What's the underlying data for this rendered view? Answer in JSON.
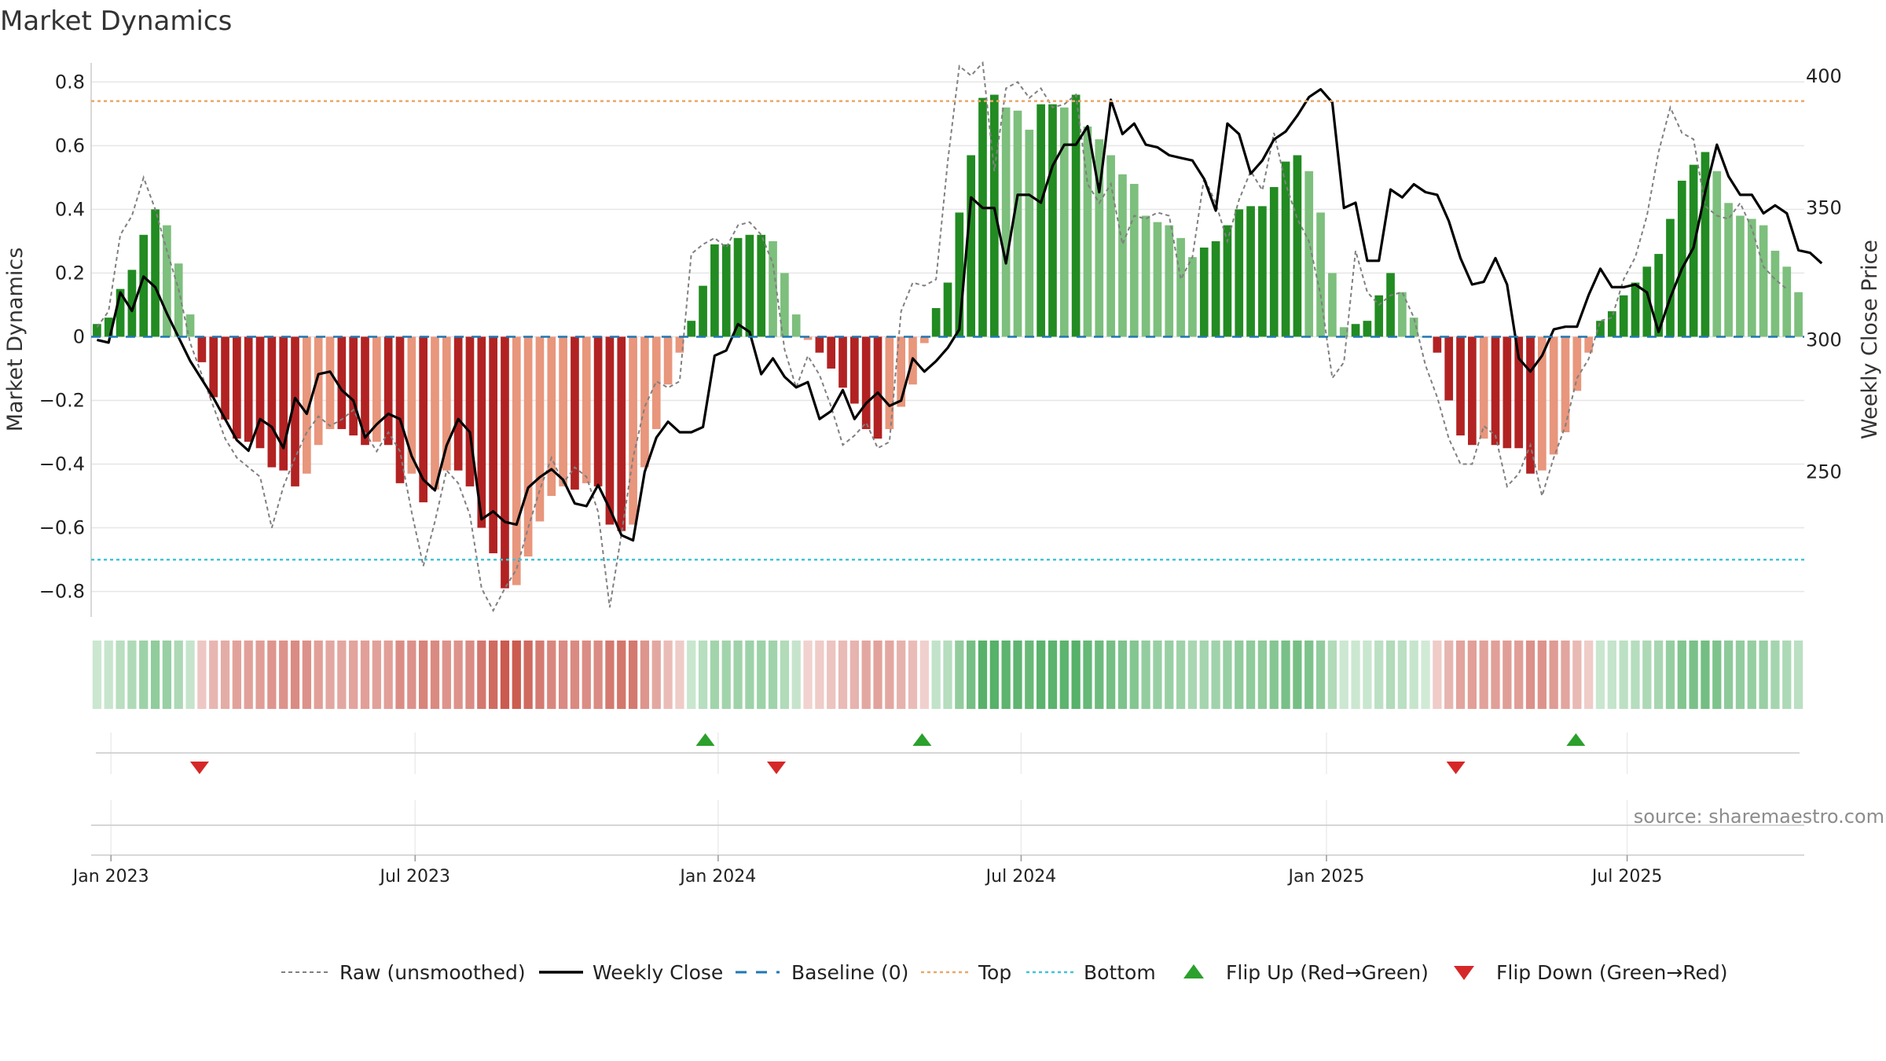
{
  "title": "Market Dynamics",
  "source": "source: sharemaestro.com",
  "chart_data": {
    "type": "bar",
    "title": "Market Dynamics",
    "ylabel_left": "Market Dynamics",
    "ylabel_right": "Weekly Close Price",
    "ylim_left": [
      -0.88,
      0.86
    ],
    "ylim_right": [
      195,
      405
    ],
    "yticks_left": [
      {
        "v": 0.8,
        "label": "0.8"
      },
      {
        "v": 0.6,
        "label": "0.6"
      },
      {
        "v": 0.4,
        "label": "0.4"
      },
      {
        "v": 0.2,
        "label": "0.2"
      },
      {
        "v": 0,
        "label": "0"
      },
      {
        "v": -0.2,
        "label": "−0.2"
      },
      {
        "v": -0.4,
        "label": "−0.4"
      },
      {
        "v": -0.6,
        "label": "−0.6"
      },
      {
        "v": -0.8,
        "label": "−0.8"
      }
    ],
    "yticks_right": [
      {
        "v": 400,
        "label": "400"
      },
      {
        "v": 350,
        "label": "350"
      },
      {
        "v": 300,
        "label": "300"
      },
      {
        "v": 250,
        "label": "250"
      }
    ],
    "xticks": [
      {
        "week": 1.7,
        "label": "Jan 2023"
      },
      {
        "week": 27.8,
        "label": "Jul 2023"
      },
      {
        "week": 53.8,
        "label": "Jan 2024"
      },
      {
        "week": 79.8,
        "label": "Jul 2024"
      },
      {
        "week": 106.0,
        "label": "Jan 2025"
      },
      {
        "week": 131.8,
        "label": "Jul 2025"
      }
    ],
    "top_line": 0.74,
    "bottom_line": -0.7,
    "baseline": 0,
    "start_date": "2022-12-26",
    "bar_values": [
      0.04,
      0.06,
      0.15,
      0.21,
      0.32,
      0.4,
      0.35,
      0.23,
      0.07,
      -0.08,
      -0.19,
      -0.26,
      -0.32,
      -0.33,
      -0.35,
      -0.41,
      -0.42,
      -0.47,
      -0.43,
      -0.34,
      -0.29,
      -0.29,
      -0.31,
      -0.34,
      -0.33,
      -0.34,
      -0.46,
      -0.43,
      -0.52,
      -0.48,
      -0.42,
      -0.42,
      -0.47,
      -0.6,
      -0.68,
      -0.79,
      -0.78,
      -0.69,
      -0.58,
      -0.5,
      -0.47,
      -0.48,
      -0.46,
      -0.47,
      -0.59,
      -0.61,
      -0.59,
      -0.41,
      -0.29,
      -0.15,
      -0.05,
      0.05,
      0.16,
      0.29,
      0.29,
      0.31,
      0.32,
      0.32,
      0.3,
      0.2,
      0.07,
      -0.01,
      -0.05,
      -0.1,
      -0.16,
      -0.21,
      -0.29,
      -0.32,
      -0.29,
      -0.22,
      -0.15,
      -0.02,
      0.09,
      0.17,
      0.39,
      0.57,
      0.75,
      0.76,
      0.72,
      0.71,
      0.65,
      0.73,
      0.73,
      0.72,
      0.76,
      0.66,
      0.62,
      0.57,
      0.51,
      0.48,
      0.38,
      0.36,
      0.35,
      0.31,
      0.25,
      0.28,
      0.3,
      0.35,
      0.4,
      0.41,
      0.41,
      0.47,
      0.55,
      0.57,
      0.52,
      0.39,
      0.2,
      0.03,
      0.04,
      0.05,
      0.13,
      0.2,
      0.14,
      0.06,
      0.0,
      -0.05,
      -0.2,
      -0.31,
      -0.34,
      -0.32,
      -0.34,
      -0.35,
      -0.35,
      -0.43,
      -0.42,
      -0.37,
      -0.3,
      -0.17,
      -0.05,
      0.05,
      0.08,
      0.13,
      0.17,
      0.22,
      0.26,
      0.37,
      0.49,
      0.54,
      0.58,
      0.52,
      0.42,
      0.38,
      0.37,
      0.35,
      0.27,
      0.22,
      0.14
    ],
    "raw_values": [
      0.03,
      0.08,
      0.32,
      0.38,
      0.5,
      0.4,
      0.27,
      0.15,
      -0.02,
      -0.12,
      -0.22,
      -0.32,
      -0.38,
      -0.41,
      -0.44,
      -0.6,
      -0.47,
      -0.38,
      -0.3,
      -0.25,
      -0.28,
      -0.26,
      -0.23,
      -0.3,
      -0.36,
      -0.3,
      -0.36,
      -0.55,
      -0.72,
      -0.58,
      -0.42,
      -0.46,
      -0.56,
      -0.79,
      -0.86,
      -0.79,
      -0.73,
      -0.6,
      -0.48,
      -0.38,
      -0.46,
      -0.41,
      -0.44,
      -0.55,
      -0.85,
      -0.62,
      -0.38,
      -0.22,
      -0.14,
      -0.16,
      -0.14,
      0.26,
      0.29,
      0.31,
      0.28,
      0.35,
      0.36,
      0.32,
      0.23,
      -0.04,
      -0.16,
      -0.06,
      -0.12,
      -0.22,
      -0.34,
      -0.31,
      -0.27,
      -0.35,
      -0.33,
      0.08,
      0.17,
      0.16,
      0.18,
      0.55,
      0.85,
      0.82,
      0.86,
      0.52,
      0.78,
      0.8,
      0.75,
      0.78,
      0.72,
      0.73,
      0.76,
      0.48,
      0.42,
      0.48,
      0.29,
      0.38,
      0.37,
      0.39,
      0.38,
      0.18,
      0.25,
      0.5,
      0.42,
      0.3,
      0.43,
      0.52,
      0.46,
      0.64,
      0.48,
      0.37,
      0.3,
      0.13,
      -0.13,
      -0.08,
      0.27,
      0.14,
      0.1,
      0.13,
      0.14,
      0.06,
      -0.09,
      -0.19,
      -0.32,
      -0.4,
      -0.4,
      -0.28,
      -0.31,
      -0.47,
      -0.43,
      -0.34,
      -0.5,
      -0.38,
      -0.28,
      -0.13,
      -0.07,
      0.05,
      0.06,
      0.18,
      0.25,
      0.38,
      0.58,
      0.72,
      0.64,
      0.62,
      0.41,
      0.38,
      0.37,
      0.42,
      0.34,
      0.22,
      0.18,
      0.15
    ],
    "close_values": [
      300,
      299,
      318,
      311,
      324,
      320,
      310,
      301,
      292,
      285,
      278,
      270,
      262,
      258,
      270,
      267,
      259,
      278,
      272,
      287,
      288,
      281,
      277,
      263,
      268,
      272,
      270,
      256,
      247,
      243,
      260,
      270,
      265,
      232,
      235,
      231,
      230,
      244,
      248,
      251,
      247,
      238,
      237,
      245,
      236,
      226,
      224,
      250,
      263,
      269,
      265,
      265,
      267,
      294,
      296,
      306,
      303,
      287,
      293,
      286,
      282,
      284,
      270,
      273,
      281,
      270,
      276,
      280,
      275,
      277,
      293,
      288,
      292,
      297,
      304,
      354,
      350,
      350,
      329,
      355,
      355,
      352,
      366,
      374,
      374,
      381,
      356,
      391,
      378,
      382,
      374,
      373,
      370,
      369,
      368,
      361,
      349,
      382,
      378,
      363,
      368,
      376,
      379,
      385,
      392,
      395,
      390,
      350,
      352,
      330,
      330,
      357,
      354,
      359,
      356,
      355,
      345,
      331,
      321,
      322,
      331,
      321,
      293,
      288,
      294,
      304,
      305,
      305,
      317,
      327,
      320,
      320,
      321,
      318,
      303,
      316,
      327,
      335,
      356,
      374,
      362,
      355,
      355,
      348,
      351,
      348,
      334,
      333,
      329
    ],
    "flip_up_weeks": [
      52.7,
      71.3,
      127.4
    ],
    "flip_down_weeks": [
      9.3,
      58.8,
      117.1
    ],
    "colors": {
      "green_strong": "#228b22",
      "green_light": "#7dbf7d",
      "red_strong": "#b22222",
      "red_light": "#e8967c",
      "top": "#e9a868",
      "bottom": "#40c4d6",
      "baseline": "#1f77b4",
      "raw": "#808080",
      "close": "#000000",
      "flip_up": "#2ca02c",
      "flip_down": "#d62728",
      "grid": "#e6e6e6"
    }
  },
  "legend": [
    {
      "kind": "raw",
      "label": "Raw (unsmoothed)"
    },
    {
      "kind": "close",
      "label": "Weekly Close"
    },
    {
      "kind": "baseline",
      "label": "Baseline (0)"
    },
    {
      "kind": "top",
      "label": "Top"
    },
    {
      "kind": "bottom",
      "label": "Bottom"
    },
    {
      "kind": "flipup",
      "label": "Flip Up (Red→Green)"
    },
    {
      "kind": "flipdown",
      "label": "Flip Down (Green→Red)"
    }
  ]
}
